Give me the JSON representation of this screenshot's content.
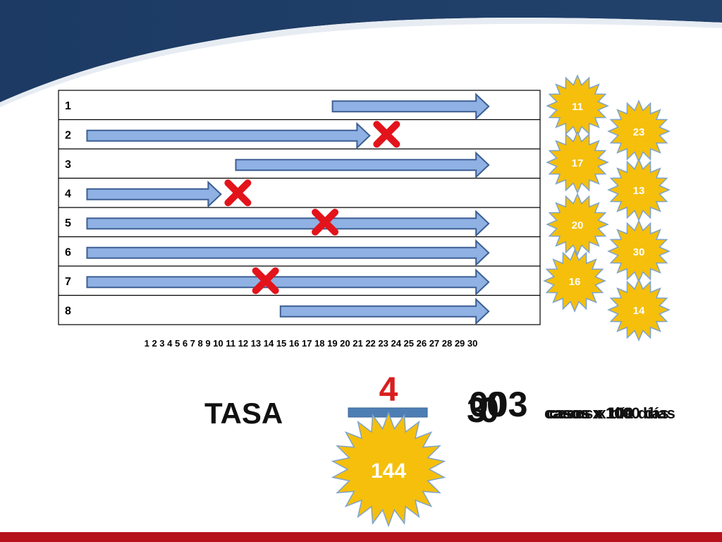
{
  "colors": {
    "header_navy": "#1c3a63",
    "arrow_fill": "#8fb1e3",
    "arrow_stroke": "#3d5f93",
    "cross": "#e3131b",
    "burst_fill": "#f5bf0b",
    "burst_stroke": "#7fa3c8",
    "bottom_bar": "#b5121b"
  },
  "chart_data": {
    "type": "timeline",
    "day_axis": "1 2 3 4 5 6 7 8 9 10 11 12 13 14 15 16 17 18 19 20 21 22 23 24 25 26 27 28 29 30",
    "rows": [
      {
        "label": "1",
        "start": 17,
        "end": 27.5,
        "event": false
      },
      {
        "label": "2",
        "start": 0.5,
        "end": 19.5,
        "event": true
      },
      {
        "label": "3",
        "start": 10.5,
        "end": 27.5,
        "event": false
      },
      {
        "label": "4",
        "start": 0.5,
        "end": 9.5,
        "event": true
      },
      {
        "label": "5",
        "start": 0.5,
        "end": 27.5,
        "event": true,
        "event_day": 16.5
      },
      {
        "label": "6",
        "start": 0.5,
        "end": 27.5,
        "event": false
      },
      {
        "label": "7",
        "start": 0.5,
        "end": 27.5,
        "event": true,
        "event_day": 12.5
      },
      {
        "label": "8",
        "start": 13.5,
        "end": 27.5,
        "event": false
      }
    ],
    "person_days": [
      "11",
      "23",
      "17",
      "13",
      "20",
      "30",
      "16",
      "14"
    ]
  },
  "formula": {
    "label": "TASA",
    "numerator": "4",
    "denominator": "144",
    "result": "003",
    "overlap_glyphs": [
      "3",
      "0",
      "0"
    ],
    "units": [
      "casos x 1000 días",
      "casos x 100 días",
      "casos x día"
    ]
  }
}
